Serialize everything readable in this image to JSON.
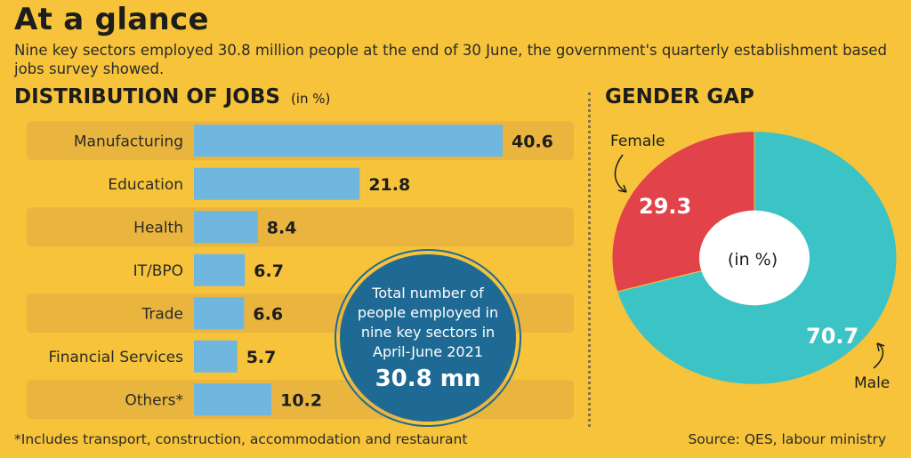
{
  "header": {
    "title": "At a glance",
    "subtitle": "Nine key sectors employed 30.8 million people at the end of 30 June, the government's quarterly establishment based jobs survey showed."
  },
  "footer": {
    "footnote": "*Includes transport, construction, accommodation and restaurant",
    "source": "Source: QES, labour ministry"
  },
  "badge": {
    "text": "Total number of people employed in nine key sectors in April-June 2021",
    "value": "30.8 mn",
    "color": "#1f6a94"
  },
  "colors": {
    "background": "#f6c33a",
    "bar": "#6fb7df",
    "female": "#e2424a",
    "male": "#3cc3c6"
  },
  "chart_data": [
    {
      "type": "bar",
      "orientation": "horizontal",
      "title": "DISTRIBUTION OF JOBS",
      "unit_label": "(in %)",
      "categories": [
        "Manufacturing",
        "Education",
        "Health",
        "IT/BPO",
        "Trade",
        "Financial Services",
        "Others*"
      ],
      "values": [
        40.6,
        21.8,
        8.4,
        6.7,
        6.6,
        5.7,
        10.2
      ],
      "data_labels": [
        "40.6",
        "21.8",
        "8.4",
        "6.7",
        "6.6",
        "5.7",
        "10.2"
      ]
    },
    {
      "type": "pie",
      "variant": "donut",
      "title": "GENDER GAP",
      "center_label": "(in %)",
      "slices": [
        {
          "label": "Female",
          "value": 29.3,
          "data_label": "29.3",
          "color": "#e2424a"
        },
        {
          "label": "Male",
          "value": 70.7,
          "data_label": "70.7",
          "color": "#3cc3c6"
        }
      ]
    }
  ]
}
